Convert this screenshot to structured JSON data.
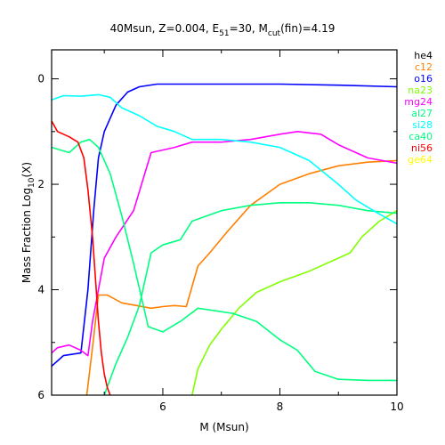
{
  "chart_data": {
    "type": "line",
    "title_parts": {
      "main": "40Msun, Z=0.004, E",
      "e_sub": "51",
      "mid": "=30, M",
      "m_sub": "cut",
      "end": "(fin)=4.19"
    },
    "xlabel": "M (Msun)",
    "ylabel_parts": {
      "main": "Mass Fraction Log",
      "sub": "10",
      "end": "(X)"
    },
    "xlim": [
      4.1,
      10.0
    ],
    "ylim": [
      -6.0,
      0.55
    ],
    "x_ticks": [
      6,
      8,
      10
    ],
    "y_ticks": [
      0,
      -2,
      -4,
      -6
    ],
    "y_tick_labels": [
      "0",
      "2",
      "4",
      "6"
    ],
    "grid": false,
    "legend_position": "right-outside",
    "series": [
      {
        "name": "he4",
        "color": "#000000",
        "x": [],
        "y": []
      },
      {
        "name": "c12",
        "color": "#ff8000",
        "x": [
          4.7,
          4.82,
          4.9,
          5.05,
          5.3,
          5.8,
          6.0,
          6.2,
          6.4,
          6.6,
          6.8,
          7.1,
          7.5,
          8.0,
          8.5,
          9.0,
          9.5,
          10.0
        ],
        "y": [
          -6.0,
          -4.9,
          -4.1,
          -4.1,
          -4.25,
          -4.35,
          -4.32,
          -4.3,
          -4.32,
          -3.55,
          -3.3,
          -2.9,
          -2.4,
          -2.0,
          -1.8,
          -1.65,
          -1.58,
          -1.55
        ]
      },
      {
        "name": "o16",
        "color": "#0000ff",
        "x": [
          4.1,
          4.3,
          4.6,
          4.72,
          4.82,
          4.9,
          5.0,
          5.2,
          5.4,
          5.6,
          5.9,
          6.3,
          7.0,
          8.0,
          9.0,
          10.0
        ],
        "y": [
          -5.45,
          -5.25,
          -5.2,
          -4.0,
          -2.5,
          -1.5,
          -1.0,
          -0.5,
          -0.25,
          -0.15,
          -0.1,
          -0.1,
          -0.1,
          -0.1,
          -0.12,
          -0.15
        ]
      },
      {
        "name": "na23",
        "color": "#80ff00",
        "x": [
          6.5,
          6.6,
          6.8,
          7.0,
          7.3,
          7.6,
          8.0,
          8.5,
          9.0,
          9.2,
          9.4,
          9.7,
          10.0
        ],
        "y": [
          -6.0,
          -5.5,
          -5.05,
          -4.75,
          -4.35,
          -4.05,
          -3.85,
          -3.65,
          -3.4,
          -3.3,
          -3.0,
          -2.7,
          -2.5
        ]
      },
      {
        "name": "mg24",
        "color": "#ff00ff",
        "x": [
          4.1,
          4.2,
          4.4,
          4.6,
          4.72,
          4.8,
          4.9,
          5.0,
          5.2,
          5.5,
          5.8,
          6.2,
          6.5,
          7.0,
          7.5,
          8.0,
          8.3,
          8.7,
          9.0,
          9.5,
          10.0
        ],
        "y": [
          -5.2,
          -5.1,
          -5.05,
          -5.15,
          -5.25,
          -4.6,
          -4.0,
          -3.4,
          -3.0,
          -2.5,
          -1.4,
          -1.3,
          -1.2,
          -1.2,
          -1.15,
          -1.05,
          -1.0,
          -1.05,
          -1.25,
          -1.5,
          -1.6
        ]
      },
      {
        "name": "al27",
        "color": "#00ff80",
        "x": [
          5.0,
          5.2,
          5.4,
          5.6,
          5.8,
          6.0,
          6.3,
          6.5,
          7.0,
          7.5,
          8.0,
          8.5,
          9.0,
          9.5,
          10.0
        ],
        "y": [
          -6.0,
          -5.4,
          -4.9,
          -4.3,
          -3.3,
          -3.15,
          -3.05,
          -2.7,
          -2.5,
          -2.4,
          -2.35,
          -2.35,
          -2.4,
          -2.5,
          -2.55
        ]
      },
      {
        "name": "si28",
        "color": "#00ffff",
        "x": [
          4.1,
          4.3,
          4.6,
          4.9,
          5.1,
          5.3,
          5.6,
          5.9,
          6.2,
          6.5,
          7.0,
          7.5,
          8.0,
          8.5,
          9.0,
          9.3,
          9.6,
          10.0
        ],
        "y": [
          -0.4,
          -0.32,
          -0.33,
          -0.3,
          -0.35,
          -0.55,
          -0.7,
          -0.9,
          -1.0,
          -1.15,
          -1.15,
          -1.2,
          -1.3,
          -1.55,
          -2.0,
          -2.3,
          -2.5,
          -2.75
        ]
      },
      {
        "name": "ca40",
        "color": "#00ff80",
        "x": [
          4.1,
          4.4,
          4.6,
          4.75,
          4.9,
          5.1,
          5.3,
          5.5,
          5.75,
          6.0,
          6.3,
          6.6,
          6.9,
          7.2,
          7.6,
          8.0,
          8.3,
          8.6,
          9.0,
          9.5,
          10.0
        ],
        "y": [
          -1.3,
          -1.4,
          -1.2,
          -1.15,
          -1.3,
          -1.8,
          -2.6,
          -3.5,
          -4.7,
          -4.8,
          -4.6,
          -4.35,
          -4.4,
          -4.45,
          -4.6,
          -4.95,
          -5.15,
          -5.55,
          -5.7,
          -5.72,
          -5.72
        ]
      },
      {
        "name": "ni56",
        "color": "#ff0000",
        "x": [
          4.1,
          4.2,
          4.4,
          4.55,
          4.65,
          4.72,
          4.8,
          4.85,
          4.9,
          4.95,
          5.0,
          5.05,
          5.1
        ],
        "y": [
          -0.8,
          -1.0,
          -1.1,
          -1.2,
          -1.5,
          -2.1,
          -3.0,
          -3.8,
          -4.6,
          -5.2,
          -5.6,
          -5.85,
          -6.0
        ]
      },
      {
        "name": "ge64",
        "color": "#ffff00",
        "x": [],
        "y": []
      }
    ]
  }
}
